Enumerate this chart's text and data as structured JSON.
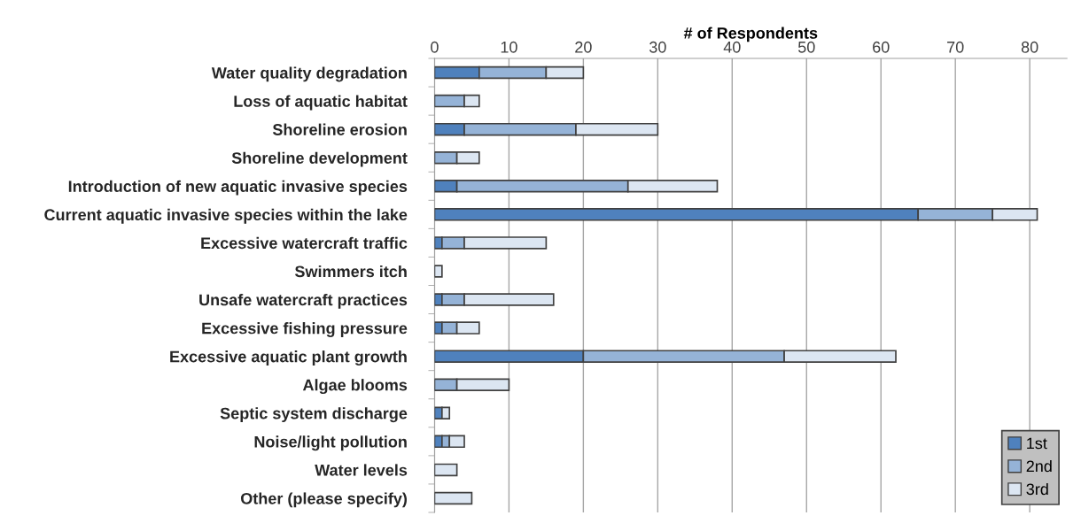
{
  "chart_data": {
    "type": "bar",
    "orientation": "horizontal",
    "stacked": true,
    "xlabel": "# of Respondents",
    "categories": [
      "Water quality degradation",
      "Loss of aquatic habitat",
      "Shoreline erosion",
      "Shoreline development",
      "Introduction of new aquatic invasive species",
      "Current aquatic invasive species within the lake",
      "Excessive watercraft traffic",
      "Swimmers itch",
      "Unsafe watercraft practices",
      "Excessive fishing pressure",
      "Excessive aquatic plant growth",
      "Algae blooms",
      "Septic system discharge",
      "Noise/light pollution",
      "Water levels",
      "Other (please specify)"
    ],
    "series": [
      {
        "name": "1st",
        "color": "#4f81bd",
        "values": [
          6,
          0,
          4,
          0,
          3,
          65,
          1,
          0,
          1,
          1,
          20,
          0,
          1,
          1,
          0,
          0
        ]
      },
      {
        "name": "2nd",
        "color": "#95b3d7",
        "values": [
          9,
          4,
          15,
          3,
          23,
          10,
          3,
          0,
          3,
          2,
          27,
          3,
          0,
          1,
          0,
          0
        ]
      },
      {
        "name": "3rd",
        "color": "#dce6f2",
        "values": [
          5,
          2,
          11,
          3,
          12,
          6,
          11,
          1,
          12,
          3,
          15,
          7,
          1,
          2,
          3,
          5
        ]
      }
    ],
    "xlim": [
      0,
      85
    ],
    "xticks": [
      0,
      10,
      20,
      30,
      40,
      50,
      60,
      70,
      80
    ],
    "grid": "x",
    "legend": "bottom right"
  }
}
